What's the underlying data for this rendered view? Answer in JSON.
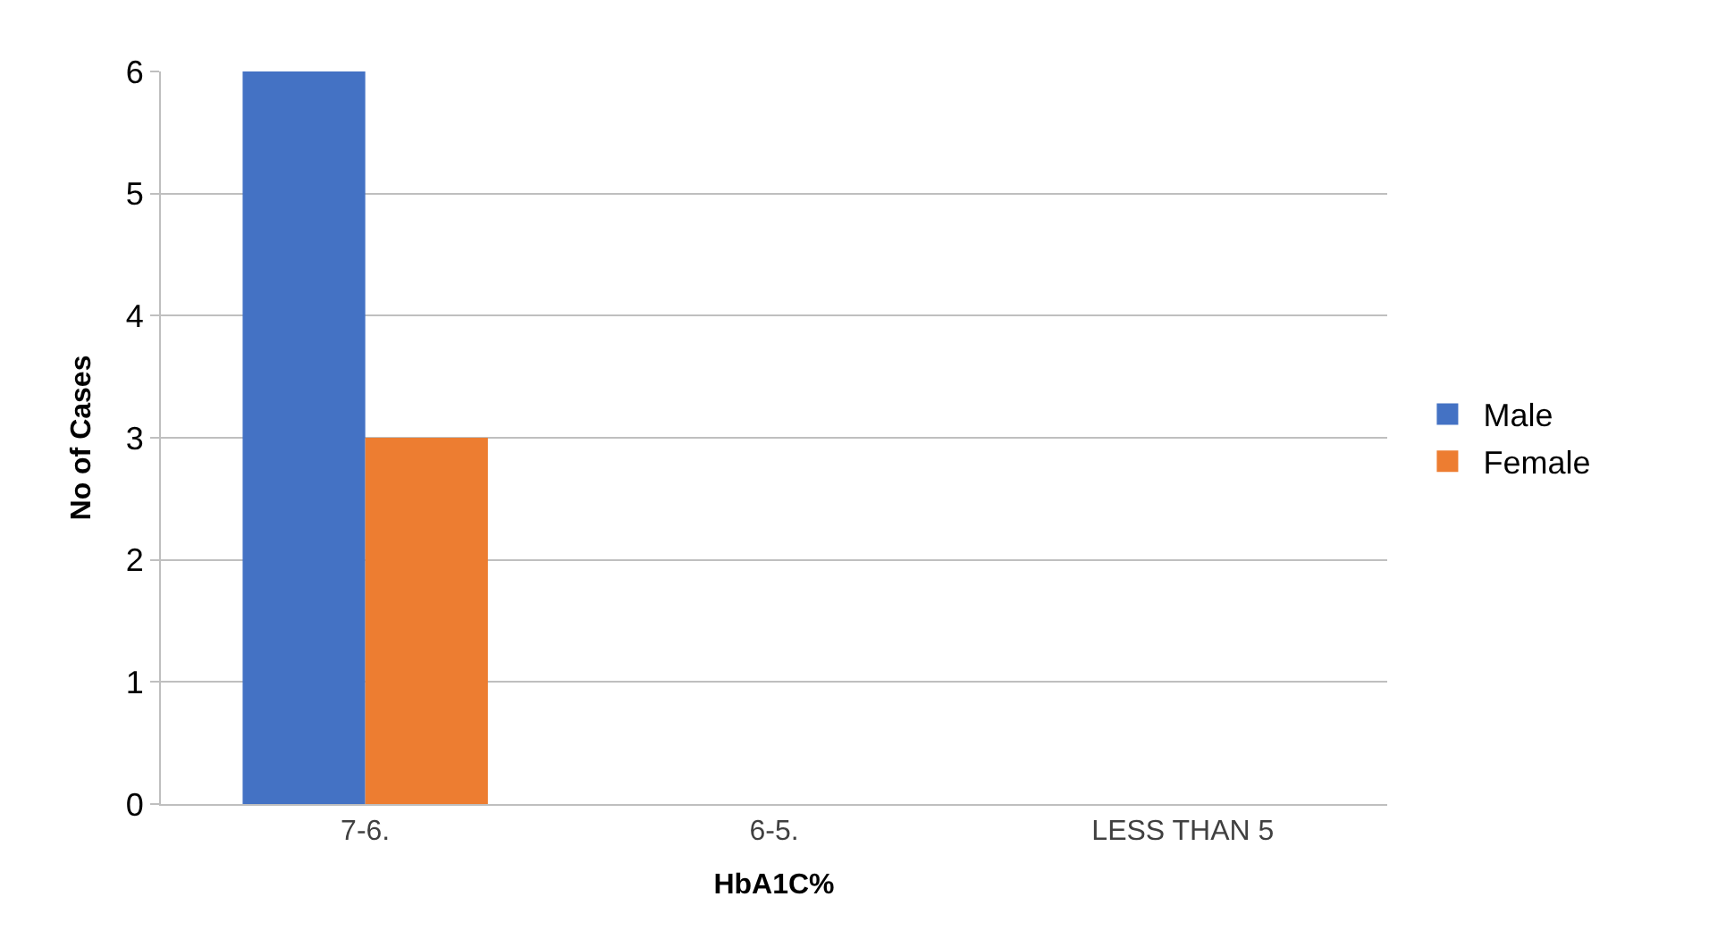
{
  "chart_data": {
    "type": "bar",
    "xlabel": "HbA1C%",
    "ylabel": "No of Cases",
    "categories": [
      "7-6.",
      "6-5.",
      "LESS THAN 5"
    ],
    "series": [
      {
        "name": "Male",
        "color": "#4472c4",
        "values": [
          6,
          0,
          0
        ]
      },
      {
        "name": "Female",
        "color": "#ed7d31",
        "values": [
          3,
          0,
          0
        ]
      }
    ],
    "ylim": [
      0,
      6
    ],
    "yticks": [
      0,
      1,
      2,
      3,
      4,
      5,
      6
    ],
    "grid": "y",
    "legend": "right"
  }
}
